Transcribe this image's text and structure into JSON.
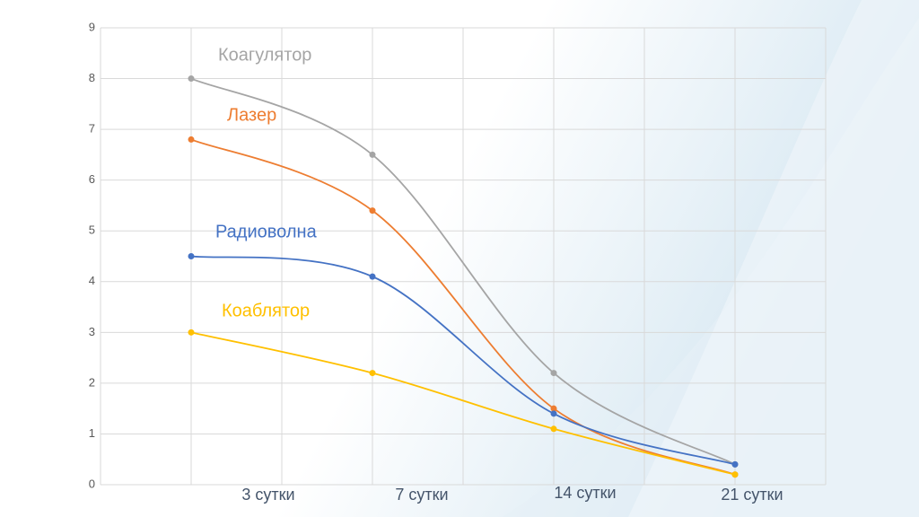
{
  "chart_data": {
    "type": "line",
    "categories": [
      "3 сутки",
      "7 сутки",
      "14 сутки",
      "21 сутки"
    ],
    "series": [
      {
        "name": "Коагулятор",
        "color": "#a5a5a5",
        "values": [
          8,
          6.5,
          2.2,
          0.4
        ]
      },
      {
        "name": "Лазер",
        "color": "#ed7d31",
        "values": [
          6.8,
          5.4,
          1.5,
          0.2
        ]
      },
      {
        "name": "Радиоволна",
        "color": "#4472c4",
        "values": [
          4.5,
          4.1,
          1.4,
          0.4
        ]
      },
      {
        "name": "Коаблятор",
        "color": "#ffc000",
        "values": [
          3,
          2.2,
          1.1,
          0.2
        ]
      }
    ],
    "ylim": [
      0,
      9
    ],
    "yticks": [
      0,
      1,
      2,
      3,
      4,
      5,
      6,
      7,
      8,
      9
    ],
    "grid": true,
    "smooth": true
  }
}
